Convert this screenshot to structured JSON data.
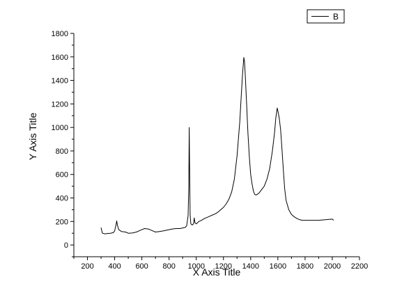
{
  "chart_data": {
    "type": "line",
    "title": "",
    "xlabel": "X Axis Title",
    "ylabel": "Y Axis Title",
    "xlim": [
      100,
      2200
    ],
    "ylim": [
      -100,
      1800
    ],
    "x_ticks": [
      200,
      400,
      600,
      800,
      1000,
      1200,
      1400,
      1600,
      1800,
      2000,
      2200
    ],
    "y_ticks": [
      0,
      200,
      400,
      600,
      800,
      1000,
      1200,
      1400,
      1600,
      1800
    ],
    "grid": false,
    "legend_position": "top-right",
    "line_color": "#000000",
    "series": [
      {
        "name": "B",
        "points": [
          [
            300,
            148
          ],
          [
            310,
            100
          ],
          [
            330,
            95
          ],
          [
            350,
            98
          ],
          [
            370,
            100
          ],
          [
            390,
            105
          ],
          [
            400,
            120
          ],
          [
            410,
            170
          ],
          [
            415,
            205
          ],
          [
            420,
            170
          ],
          [
            430,
            130
          ],
          [
            450,
            115
          ],
          [
            480,
            110
          ],
          [
            500,
            100
          ],
          [
            530,
            102
          ],
          [
            560,
            110
          ],
          [
            580,
            120
          ],
          [
            600,
            130
          ],
          [
            620,
            140
          ],
          [
            650,
            135
          ],
          [
            680,
            120
          ],
          [
            700,
            110
          ],
          [
            730,
            115
          ],
          [
            760,
            120
          ],
          [
            800,
            130
          ],
          [
            820,
            135
          ],
          [
            850,
            140
          ],
          [
            880,
            140
          ],
          [
            900,
            145
          ],
          [
            920,
            150
          ],
          [
            930,
            165
          ],
          [
            940,
            250
          ],
          [
            945,
            500
          ],
          [
            948,
            1000
          ],
          [
            951,
            700
          ],
          [
            955,
            260
          ],
          [
            960,
            180
          ],
          [
            970,
            170
          ],
          [
            980,
            180
          ],
          [
            985,
            230
          ],
          [
            990,
            190
          ],
          [
            1000,
            180
          ],
          [
            1020,
            200
          ],
          [
            1040,
            210
          ],
          [
            1060,
            225
          ],
          [
            1080,
            235
          ],
          [
            1100,
            245
          ],
          [
            1120,
            255
          ],
          [
            1140,
            265
          ],
          [
            1160,
            280
          ],
          [
            1180,
            300
          ],
          [
            1200,
            320
          ],
          [
            1220,
            350
          ],
          [
            1240,
            390
          ],
          [
            1260,
            450
          ],
          [
            1280,
            560
          ],
          [
            1300,
            760
          ],
          [
            1320,
            1050
          ],
          [
            1330,
            1250
          ],
          [
            1340,
            1450
          ],
          [
            1350,
            1595
          ],
          [
            1355,
            1560
          ],
          [
            1360,
            1450
          ],
          [
            1370,
            1200
          ],
          [
            1380,
            950
          ],
          [
            1390,
            750
          ],
          [
            1400,
            600
          ],
          [
            1410,
            520
          ],
          [
            1420,
            460
          ],
          [
            1430,
            430
          ],
          [
            1440,
            425
          ],
          [
            1460,
            440
          ],
          [
            1480,
            470
          ],
          [
            1500,
            500
          ],
          [
            1520,
            560
          ],
          [
            1540,
            650
          ],
          [
            1560,
            800
          ],
          [
            1575,
            950
          ],
          [
            1585,
            1080
          ],
          [
            1595,
            1165
          ],
          [
            1600,
            1140
          ],
          [
            1610,
            1080
          ],
          [
            1620,
            980
          ],
          [
            1630,
            820
          ],
          [
            1640,
            640
          ],
          [
            1650,
            480
          ],
          [
            1660,
            380
          ],
          [
            1680,
            300
          ],
          [
            1700,
            260
          ],
          [
            1720,
            240
          ],
          [
            1740,
            225
          ],
          [
            1760,
            215
          ],
          [
            1780,
            210
          ],
          [
            1800,
            210
          ],
          [
            1850,
            210
          ],
          [
            1900,
            210
          ],
          [
            1950,
            215
          ],
          [
            2000,
            220
          ],
          [
            2010,
            210
          ]
        ]
      }
    ]
  }
}
